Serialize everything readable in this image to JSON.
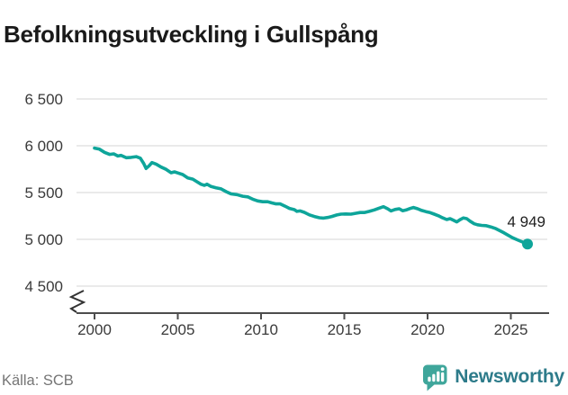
{
  "title": "Befolkningsutveckling i Gullspång",
  "footer": {
    "source": "Källa: SCB",
    "brand": "Newsworthy"
  },
  "colors": {
    "line": "#0ea59a",
    "grid": "#e3e3e3",
    "axis": "#4d4d4d",
    "tick_text": "#3a3a3a",
    "end_label_text": "#1f1f1f",
    "brand_icon": "#3fa69b",
    "brand_text": "#2d7b8a"
  },
  "chart_data": {
    "type": "line",
    "title": "Befolkningsutveckling i Gullspång",
    "xlabel": "",
    "ylabel": "",
    "grid": true,
    "legend": false,
    "axis_break": true,
    "xlim": [
      1998.9,
      2027.2
    ],
    "ylim": [
      4300,
      6700
    ],
    "x_ticks": [
      {
        "value": 2000,
        "label": "2000"
      },
      {
        "value": 2005,
        "label": "2005"
      },
      {
        "value": 2010,
        "label": "2010"
      },
      {
        "value": 2015,
        "label": "2015"
      },
      {
        "value": 2020,
        "label": "2020"
      },
      {
        "value": 2025,
        "label": "2025"
      }
    ],
    "y_ticks": [
      {
        "value": 6500,
        "label": "6 500"
      },
      {
        "value": 6000,
        "label": "6 000"
      },
      {
        "value": 5500,
        "label": "5 500"
      },
      {
        "value": 5000,
        "label": "5 000"
      },
      {
        "value": 4500,
        "label": "4 500"
      }
    ],
    "end_label": "4 949",
    "end_point": {
      "x": 2026.0,
      "y": 4949
    },
    "series": [
      {
        "name": "Befolkning",
        "points": [
          [
            2000.0,
            5975
          ],
          [
            2000.3,
            5963
          ],
          [
            2000.6,
            5930
          ],
          [
            2000.9,
            5908
          ],
          [
            2001.15,
            5913
          ],
          [
            2001.4,
            5890
          ],
          [
            2001.6,
            5897
          ],
          [
            2001.9,
            5872
          ],
          [
            2002.2,
            5876
          ],
          [
            2002.5,
            5884
          ],
          [
            2002.75,
            5867
          ],
          [
            2002.95,
            5812
          ],
          [
            2003.1,
            5758
          ],
          [
            2003.28,
            5787
          ],
          [
            2003.45,
            5820
          ],
          [
            2003.7,
            5804
          ],
          [
            2004.0,
            5772
          ],
          [
            2004.3,
            5748
          ],
          [
            2004.6,
            5712
          ],
          [
            2004.8,
            5721
          ],
          [
            2005.0,
            5710
          ],
          [
            2005.3,
            5692
          ],
          [
            2005.6,
            5656
          ],
          [
            2005.9,
            5643
          ],
          [
            2006.15,
            5615
          ],
          [
            2006.4,
            5588
          ],
          [
            2006.6,
            5577
          ],
          [
            2006.75,
            5589
          ],
          [
            2007.0,
            5564
          ],
          [
            2007.3,
            5551
          ],
          [
            2007.6,
            5539
          ],
          [
            2007.9,
            5510
          ],
          [
            2008.2,
            5486
          ],
          [
            2008.55,
            5478
          ],
          [
            2008.9,
            5461
          ],
          [
            2009.2,
            5454
          ],
          [
            2009.5,
            5429
          ],
          [
            2009.8,
            5411
          ],
          [
            2010.1,
            5402
          ],
          [
            2010.4,
            5402
          ],
          [
            2010.65,
            5389
          ],
          [
            2010.9,
            5379
          ],
          [
            2011.15,
            5379
          ],
          [
            2011.45,
            5354
          ],
          [
            2011.7,
            5331
          ],
          [
            2012.0,
            5317
          ],
          [
            2012.15,
            5299
          ],
          [
            2012.35,
            5304
          ],
          [
            2012.6,
            5288
          ],
          [
            2012.9,
            5262
          ],
          [
            2013.2,
            5244
          ],
          [
            2013.5,
            5231
          ],
          [
            2013.75,
            5227
          ],
          [
            2014.0,
            5234
          ],
          [
            2014.25,
            5244
          ],
          [
            2014.55,
            5261
          ],
          [
            2014.8,
            5269
          ],
          [
            2015.1,
            5271
          ],
          [
            2015.4,
            5269
          ],
          [
            2015.7,
            5279
          ],
          [
            2015.95,
            5287
          ],
          [
            2016.2,
            5287
          ],
          [
            2016.5,
            5299
          ],
          [
            2016.8,
            5314
          ],
          [
            2017.1,
            5334
          ],
          [
            2017.35,
            5349
          ],
          [
            2017.6,
            5327
          ],
          [
            2017.8,
            5304
          ],
          [
            2018.05,
            5319
          ],
          [
            2018.3,
            5327
          ],
          [
            2018.5,
            5306
          ],
          [
            2018.7,
            5313
          ],
          [
            2018.95,
            5330
          ],
          [
            2019.15,
            5340
          ],
          [
            2019.4,
            5327
          ],
          [
            2019.65,
            5309
          ],
          [
            2019.9,
            5296
          ],
          [
            2020.15,
            5286
          ],
          [
            2020.4,
            5269
          ],
          [
            2020.65,
            5252
          ],
          [
            2020.9,
            5230
          ],
          [
            2021.15,
            5212
          ],
          [
            2021.35,
            5221
          ],
          [
            2021.55,
            5204
          ],
          [
            2021.75,
            5187
          ],
          [
            2021.95,
            5211
          ],
          [
            2022.15,
            5229
          ],
          [
            2022.35,
            5221
          ],
          [
            2022.55,
            5194
          ],
          [
            2022.8,
            5166
          ],
          [
            2023.0,
            5156
          ],
          [
            2023.25,
            5149
          ],
          [
            2023.5,
            5146
          ],
          [
            2023.8,
            5133
          ],
          [
            2024.1,
            5114
          ],
          [
            2024.35,
            5091
          ],
          [
            2024.6,
            5068
          ],
          [
            2024.85,
            5042
          ],
          [
            2025.1,
            5017
          ],
          [
            2025.4,
            4994
          ],
          [
            2025.7,
            4971
          ],
          [
            2026.0,
            4949
          ]
        ]
      }
    ]
  }
}
